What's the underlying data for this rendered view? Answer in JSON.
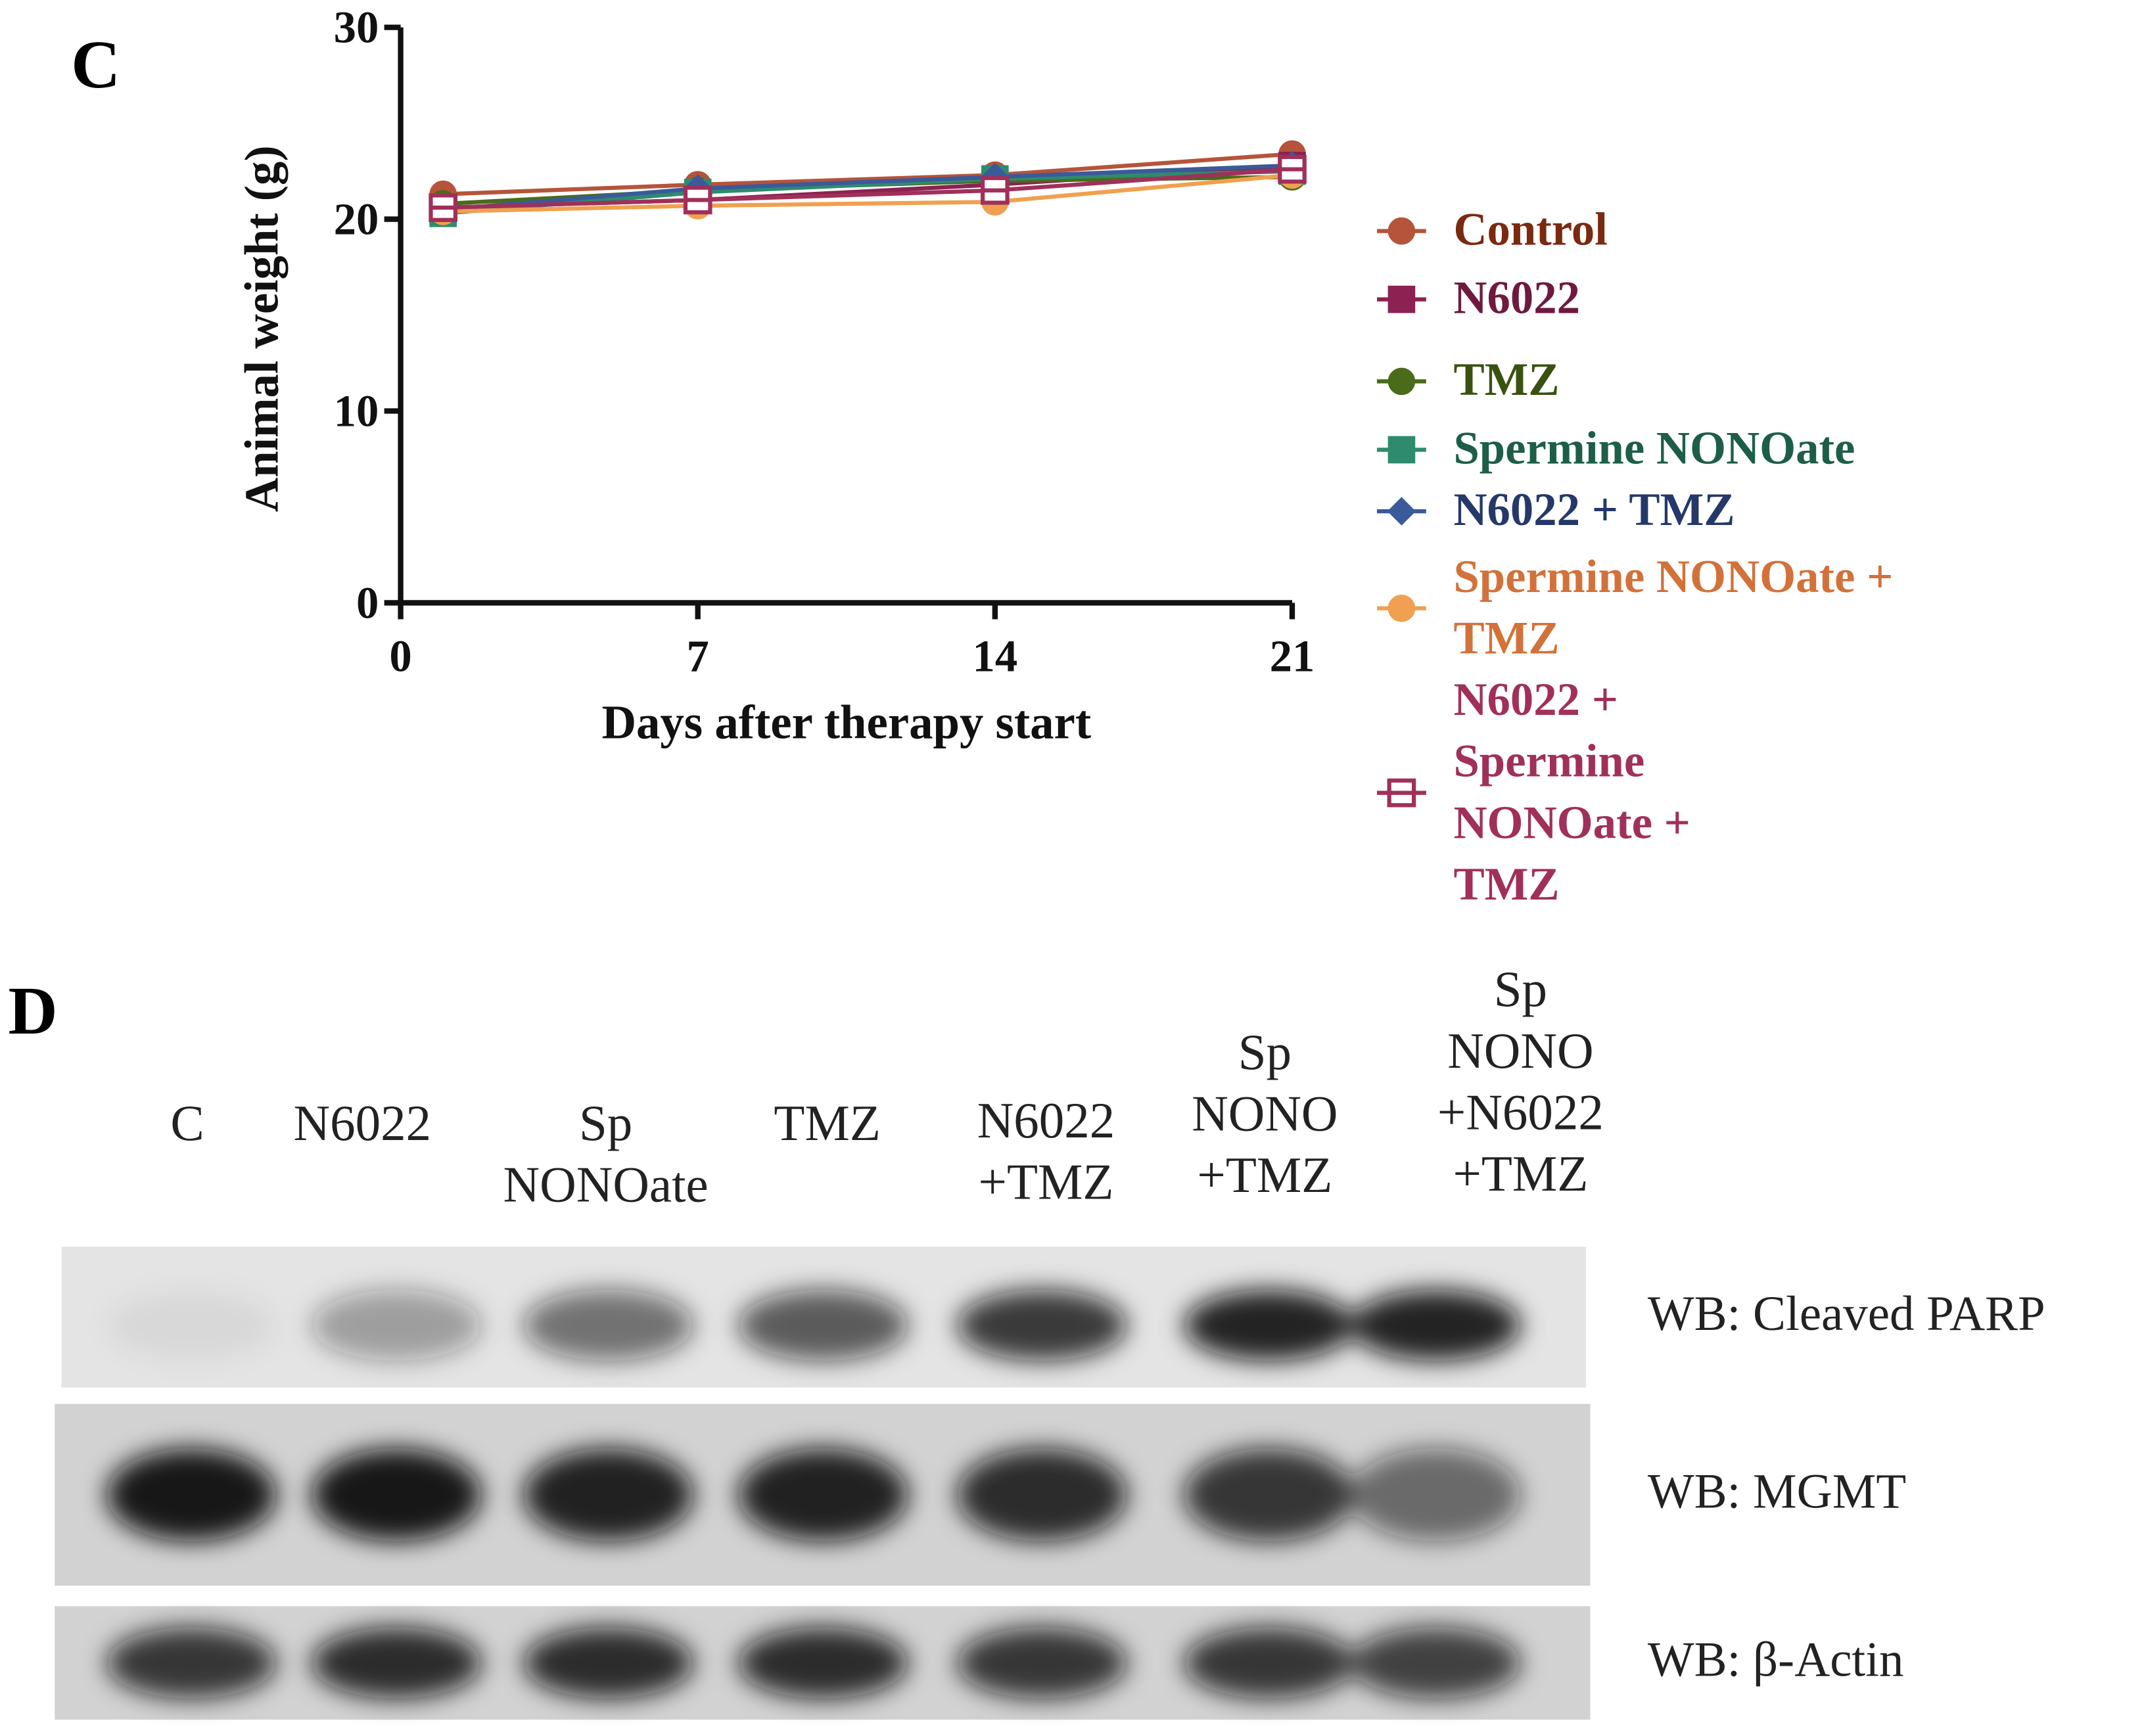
{
  "panel_labels": [
    "C",
    "D"
  ],
  "chart_data": {
    "type": "line",
    "x_label": "Days after therapy start",
    "y_label": "Animal weight (g)",
    "x": [
      1,
      7,
      14,
      21
    ],
    "xlim": [
      0,
      21
    ],
    "xticks": [
      0,
      7,
      14,
      21
    ],
    "ylim": [
      0,
      30
    ],
    "yticks": [
      0,
      10,
      20,
      30
    ],
    "series": [
      {
        "name": "Control",
        "color": "#b5543a",
        "text_color": "#7a2a10",
        "marker": "circle",
        "values": [
          21.3,
          21.8,
          22.3,
          23.4
        ]
      },
      {
        "name": "N6022",
        "color": "#8b2252",
        "text_color": "#6e1a3e",
        "marker": "square",
        "values": [
          20.6,
          21.0,
          21.8,
          22.8
        ]
      },
      {
        "name": "TMZ",
        "color": "#4a6b1a",
        "text_color": "#3a5210",
        "marker": "circle",
        "values": [
          20.8,
          21.5,
          22.0,
          22.2
        ]
      },
      {
        "name": "Spermine NONOate",
        "color": "#2e8b6e",
        "text_color": "#1d5e48",
        "marker": "square",
        "values": [
          20.3,
          21.4,
          22.1,
          22.5
        ]
      },
      {
        "name": "N6022 + TMZ",
        "color": "#3a5a9a",
        "text_color": "#24386a",
        "marker": "diamond",
        "values": [
          20.5,
          21.6,
          22.2,
          22.8
        ]
      },
      {
        "name": "Spermine NONOate + TMZ",
        "color": "#f0a050",
        "text_color": "#d2723a",
        "marker": "circle",
        "values": [
          20.4,
          20.7,
          20.9,
          22.3
        ]
      },
      {
        "name": "N6022 + Spermine NONOate + TMZ",
        "color": "#a0305a",
        "text_color": "#a0305a",
        "marker": "open-square",
        "values": [
          20.6,
          21.0,
          21.5,
          22.6
        ]
      }
    ]
  },
  "blot": {
    "lanes": [
      {
        "lines": [
          "C"
        ]
      },
      {
        "lines": [
          "N6022"
        ]
      },
      {
        "lines": [
          "Sp",
          "NONOate"
        ]
      },
      {
        "lines": [
          "TMZ"
        ]
      },
      {
        "lines": [
          "N6022",
          "+TMZ"
        ]
      },
      {
        "lines": [
          "Sp",
          "NONO",
          "+TMZ"
        ]
      },
      {
        "lines": [
          "Sp",
          "NONO",
          "+N6022",
          "+TMZ"
        ]
      }
    ],
    "rows": [
      "WB: Cleaved PARP",
      "WB: MGMT",
      "WB: β-Actin"
    ]
  }
}
